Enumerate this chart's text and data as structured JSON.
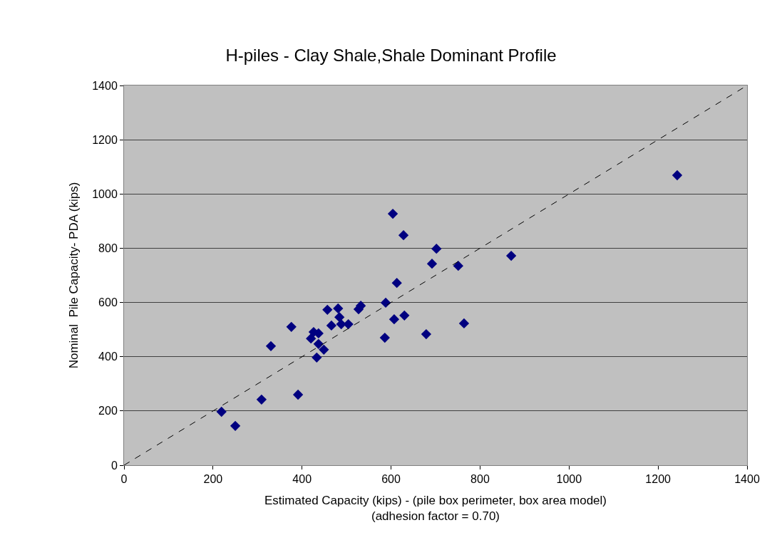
{
  "chart_data": {
    "type": "scatter",
    "title": "H-piles - Clay Shale,Shale Dominant Profile",
    "xlabel": "Estimated Capacity (kips) - (pile box perimeter, box area model)\n(adhesion factor = 0.70)",
    "ylabel": "Nominal  Pile Capacity- PDA (kips)",
    "xlim": [
      0,
      1400
    ],
    "ylim": [
      0,
      1400
    ],
    "xticks": [
      0,
      200,
      400,
      600,
      800,
      1000,
      1200,
      1400
    ],
    "yticks": [
      0,
      200,
      400,
      600,
      800,
      1000,
      1200,
      1400
    ],
    "grid": "y",
    "marker": "diamond",
    "series": [
      {
        "color": "#000080",
        "x": [
          219,
          250,
          309,
          391,
          330,
          376,
          420,
          426,
          437,
          437,
          433,
          449,
          457,
          466,
          481,
          484,
          488,
          504,
          527,
          532,
          588,
          586,
          604,
          607,
          628,
          613,
          630,
          679,
          702,
          692,
          751,
          764,
          870,
          1243
        ],
        "values": [
          197,
          145,
          242,
          260,
          439,
          510,
          467,
          491,
          486,
          447,
          397,
          426,
          573,
          515,
          578,
          546,
          520,
          520,
          575,
          588,
          599,
          470,
          927,
          538,
          848,
          672,
          552,
          483,
          798,
          743,
          735,
          523,
          772,
          1069
        ]
      },
      {
        "type": "line",
        "color": "#000000",
        "line_style": "dashed",
        "marker": "none",
        "x": [
          0,
          1400
        ],
        "values": [
          0,
          1400
        ]
      }
    ]
  }
}
